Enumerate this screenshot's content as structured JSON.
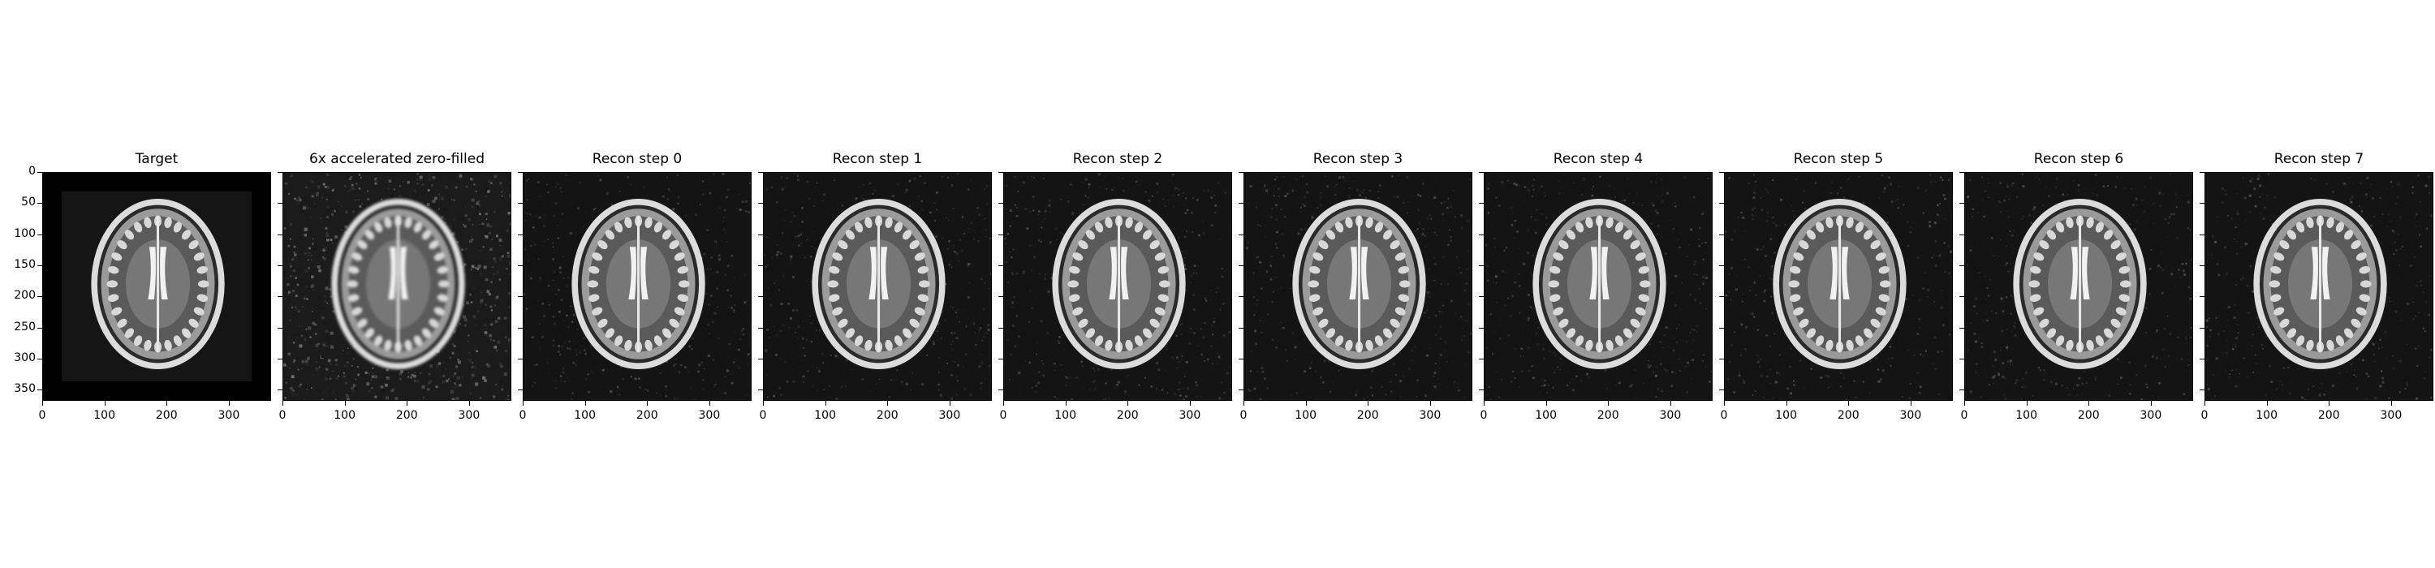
{
  "figure": {
    "panels": [
      {
        "title": "Target",
        "kind": "target",
        "show_yticks": true
      },
      {
        "title": "6x accelerated zero-filled",
        "kind": "zero-filled",
        "show_yticks": false
      },
      {
        "title": "Recon step 0",
        "kind": "recon",
        "show_yticks": false
      },
      {
        "title": "Recon step 1",
        "kind": "recon",
        "show_yticks": false
      },
      {
        "title": "Recon step 2",
        "kind": "recon",
        "show_yticks": false
      },
      {
        "title": "Recon step 3",
        "kind": "recon",
        "show_yticks": false
      },
      {
        "title": "Recon step 4",
        "kind": "recon",
        "show_yticks": false
      },
      {
        "title": "Recon step 5",
        "kind": "recon",
        "show_yticks": false
      },
      {
        "title": "Recon step 6",
        "kind": "recon",
        "show_yticks": false
      },
      {
        "title": "Recon step 7",
        "kind": "recon",
        "show_yticks": false
      }
    ],
    "x_ticks": [
      "0",
      "100",
      "200",
      "300"
    ],
    "y_ticks": [
      "0",
      "50",
      "100",
      "150",
      "200",
      "250",
      "300",
      "350"
    ],
    "image_size": 368
  }
}
